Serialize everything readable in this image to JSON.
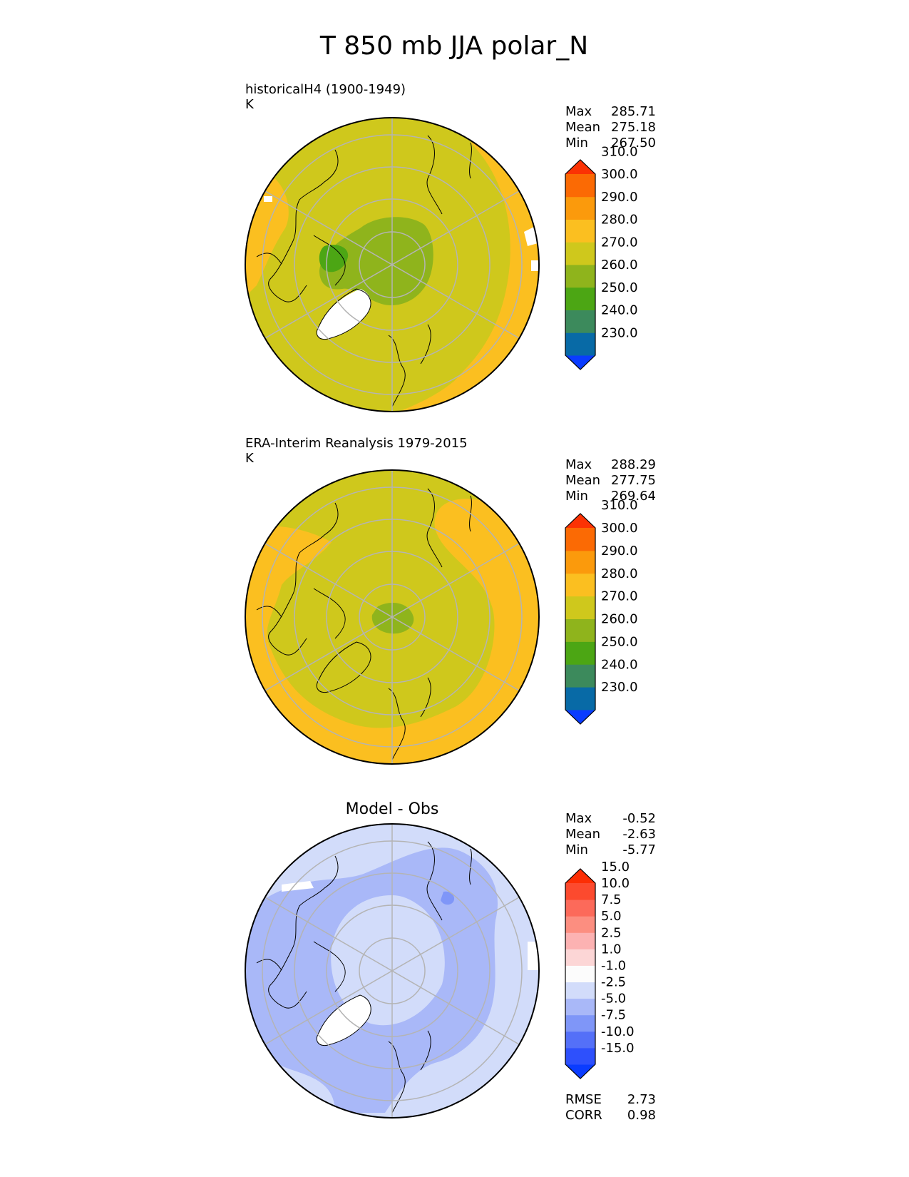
{
  "title": "T 850 mb JJA polar_N",
  "panels": [
    {
      "title_line1": "historicalH4 (1900-1949)",
      "title_line2": "K",
      "stats": [
        {
          "label": "Max",
          "value": "285.71"
        },
        {
          "label": "Mean",
          "value": "275.18"
        },
        {
          "label": "Min",
          "value": "267.50"
        }
      ],
      "colorbar": {
        "colors": [
          "#0a3cff",
          "#086aa6",
          "#3c8a5c",
          "#4ca614",
          "#8fb41c",
          "#cfc81c",
          "#fbbf20",
          "#fb9a0c",
          "#fb6a04",
          "#fb3204"
        ],
        "tick_labels": [
          "230.0",
          "240.0",
          "250.0",
          "260.0",
          "270.0",
          "280.0",
          "290.0",
          "300.0",
          "310.0"
        ]
      },
      "map": {
        "background": "#cfc81c",
        "outer_ring": "#fbbf20",
        "cold_core": "#8fb41c",
        "colder_spots": "#4ca614",
        "missing": "#ffffff"
      }
    },
    {
      "title_line1": "ERA-Interim Reanalysis 1979-2015",
      "title_line2": "K",
      "stats": [
        {
          "label": "Max",
          "value": "288.29"
        },
        {
          "label": "Mean",
          "value": "277.75"
        },
        {
          "label": "Min",
          "value": "269.64"
        }
      ],
      "colorbar": {
        "colors": [
          "#0a3cff",
          "#086aa6",
          "#3c8a5c",
          "#4ca614",
          "#8fb41c",
          "#cfc81c",
          "#fbbf20",
          "#fb9a0c",
          "#fb6a04",
          "#fb3204"
        ],
        "tick_labels": [
          "230.0",
          "240.0",
          "250.0",
          "260.0",
          "270.0",
          "280.0",
          "290.0",
          "300.0",
          "310.0"
        ]
      },
      "map": {
        "background": "#cfc81c",
        "outer_ring": "#fbbf20",
        "cold_core": "#8fb41c"
      }
    },
    {
      "title_center": "Model - Obs",
      "stats": [
        {
          "label": "Max",
          "value": "-0.52"
        },
        {
          "label": "Mean",
          "value": "-2.63"
        },
        {
          "label": "Min",
          "value": "-5.77"
        }
      ],
      "colorbar": {
        "colors": [
          "#0a3cff",
          "#2e50fc",
          "#5470f8",
          "#7f96f8",
          "#a9b8f8",
          "#d2dcfa",
          "#fcfcfc",
          "#fcd6d6",
          "#fcb2b2",
          "#fc8e80",
          "#fc6a5a",
          "#fc4a2e",
          "#fc2e04"
        ],
        "tick_labels": [
          "-15.0",
          "-10.0",
          "-7.5",
          "-5.0",
          "-2.5",
          "-1.0",
          "1.0",
          "2.5",
          "5.0",
          "7.5",
          "10.0",
          "15.0"
        ]
      },
      "map": {
        "background": "#d2dcfa",
        "mid_ring": "#a9b8f8",
        "spots": "#7f96f8",
        "missing": "#ffffff"
      },
      "metrics": [
        {
          "label": "RMSE",
          "value": "2.73"
        },
        {
          "label": "CORR",
          "value": "0.98"
        }
      ]
    }
  ]
}
